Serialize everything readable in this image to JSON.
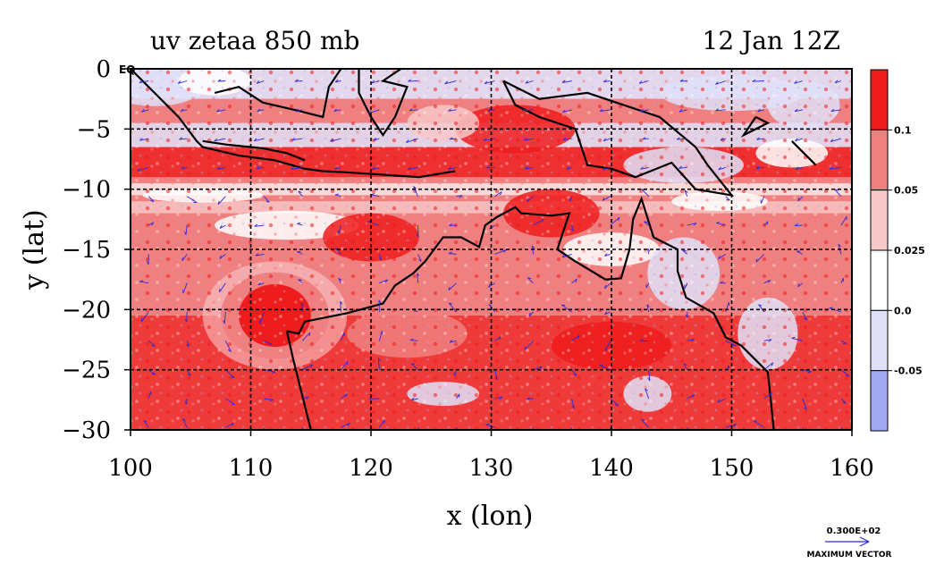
{
  "chart_data": {
    "type": "heatmap",
    "title": "uv zetaa 850 mb",
    "time_label": "12 Jan 12Z",
    "xlabel": "x (lon)",
    "ylabel": "y (lat)",
    "xlim": [
      100,
      160
    ],
    "ylim": [
      -30,
      0
    ],
    "x_ticks": [
      {
        "value": 100,
        "label": "100"
      },
      {
        "value": 110,
        "label": "110"
      },
      {
        "value": 120,
        "label": "120"
      },
      {
        "value": 130,
        "label": "130"
      },
      {
        "value": 140,
        "label": "140"
      },
      {
        "value": 150,
        "label": "150"
      },
      {
        "value": 160,
        "label": "160"
      }
    ],
    "y_ticks": [
      {
        "value": 0,
        "label": "0"
      },
      {
        "value": -5,
        "label": "−5"
      },
      {
        "value": -10,
        "label": "−10"
      },
      {
        "value": -15,
        "label": "−15"
      },
      {
        "value": -20,
        "label": "−20"
      },
      {
        "value": -25,
        "label": "−25"
      },
      {
        "value": -30,
        "label": "−30"
      }
    ],
    "eq_label": "EQ",
    "gridlines": {
      "lon": [
        110,
        120,
        130,
        140,
        150
      ],
      "lat": [
        -5,
        -10,
        -15,
        -20,
        -25
      ]
    },
    "colorbar": {
      "bins": [
        {
          "color": "#ee1c1c"
        },
        {
          "color": "#f08080"
        },
        {
          "color": "#f8c8c8"
        },
        {
          "color": "#ffffff"
        },
        {
          "color": "#e0e0f8"
        },
        {
          "color": "#a0a8f0"
        }
      ],
      "labels": [
        "0.1",
        "0.05",
        "0.025",
        "0.0",
        "-0.05"
      ]
    },
    "vortex": {
      "lon": 112,
      "lat": -20.5
    },
    "vector_color": "#2a2ad8",
    "coast_color": "#000000",
    "max_vector": {
      "value": "0.300E+02",
      "label": "MAXIMUM VECTOR"
    }
  }
}
